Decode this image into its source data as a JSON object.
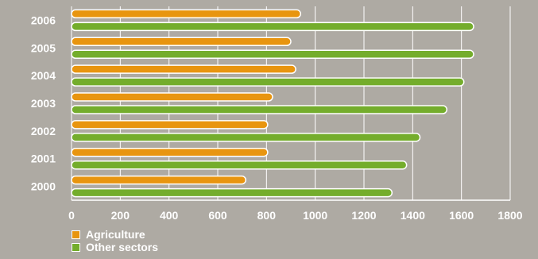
{
  "chart_data": {
    "type": "bar",
    "orientation": "horizontal",
    "categories": [
      "2000",
      "2001",
      "2002",
      "2003",
      "2004",
      "2005",
      "2006"
    ],
    "series": [
      {
        "name": "Agriculture",
        "color": "#e8950f",
        "values": [
          715,
          805,
          805,
          825,
          920,
          900,
          940
        ]
      },
      {
        "name": "Other sectors",
        "color": "#74ad2c",
        "values": [
          1315,
          1375,
          1430,
          1540,
          1610,
          1650,
          1650
        ]
      }
    ],
    "xlim": [
      0,
      1800
    ],
    "xticks": [
      0,
      200,
      400,
      600,
      800,
      1000,
      1200,
      1400,
      1600,
      1800
    ],
    "grid": true,
    "legend_position": "bottom-left"
  }
}
